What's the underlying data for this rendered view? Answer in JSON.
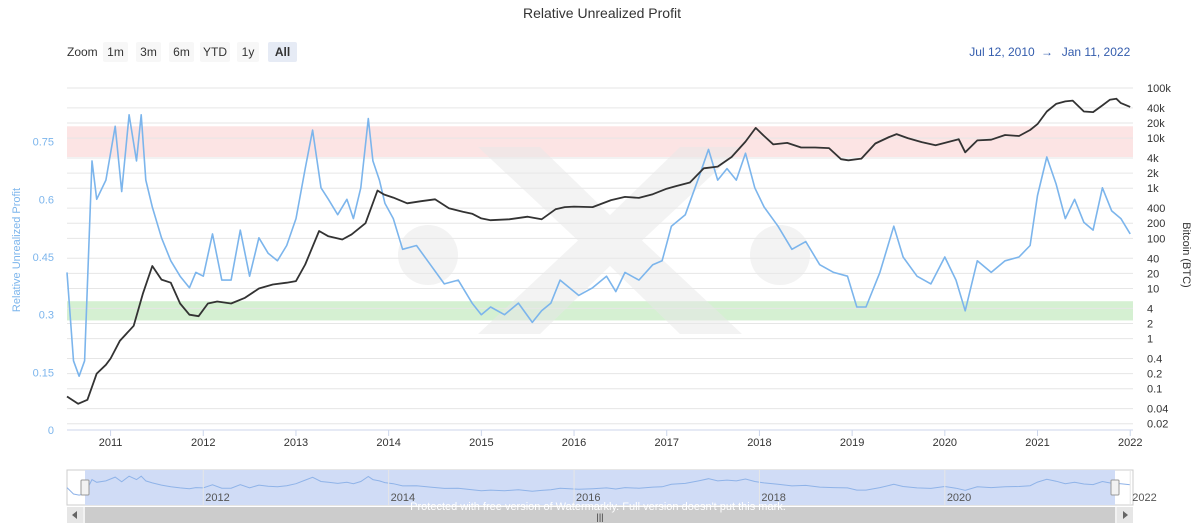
{
  "title": "Relative Unrealized Profit",
  "range_selector": {
    "zoom_label": "Zoom",
    "buttons": [
      {
        "label": "1m",
        "active": false
      },
      {
        "label": "3m",
        "active": false
      },
      {
        "label": "6m",
        "active": false
      },
      {
        "label": "YTD",
        "active": false
      },
      {
        "label": "1y",
        "active": false
      },
      {
        "label": "All",
        "active": true
      }
    ],
    "from_date": "Jul 12, 2010",
    "arrow": "→",
    "to_date": "Jan 11, 2022"
  },
  "watermark_text": "Protected with free version of Watermarkly. Full version doesn't put this mark.",
  "chart_data": {
    "type": "line",
    "title": "Relative Unrealized Profit",
    "x_range": [
      2010.53,
      2022.03
    ],
    "x_ticks": [
      "2011",
      "2012",
      "2013",
      "2014",
      "2015",
      "2016",
      "2017",
      "2018",
      "2019",
      "2020",
      "2021",
      "2022"
    ],
    "left_axis": {
      "title": "Relative Unrealized Profit",
      "range": [
        0,
        0.9
      ],
      "ticks": [
        "0",
        "0.15",
        "0.3",
        "0.45",
        "0.6",
        "0.75"
      ],
      "color": "#7cb5ec"
    },
    "right_axis": {
      "title": "Bitcoin (BTC)",
      "scale": "log",
      "range": [
        0.015,
        120000
      ],
      "ticks": [
        "0.02",
        "0.04",
        "0.1",
        "0.2",
        "0.4",
        "1",
        "2",
        "4",
        "10",
        "20",
        "40",
        "100",
        "200",
        "400",
        "1k",
        "2k",
        "4k",
        "10k",
        "20k",
        "40k",
        "100k"
      ],
      "tick_values": [
        0.02,
        0.04,
        0.1,
        0.2,
        0.4,
        1,
        2,
        4,
        10,
        20,
        40,
        100,
        200,
        400,
        1000,
        2000,
        4000,
        10000,
        20000,
        40000,
        100000
      ],
      "color": "#333333"
    },
    "bands": [
      {
        "from": 0.71,
        "to": 0.79,
        "color": "#fce4e4"
      },
      {
        "from": 0.285,
        "to": 0.335,
        "color": "#d5f0d2"
      }
    ],
    "grid": true,
    "series": [
      {
        "axis": "left",
        "color": "#7cb5ec",
        "x": [
          2010.53,
          2010.6,
          2010.66,
          2010.72,
          2010.8,
          2010.85,
          2010.95,
          2011.05,
          2011.12,
          2011.2,
          2011.28,
          2011.33,
          2011.38,
          2011.45,
          2011.55,
          2011.65,
          2011.75,
          2011.85,
          2011.92,
          2012.0,
          2012.1,
          2012.2,
          2012.3,
          2012.4,
          2012.5,
          2012.6,
          2012.7,
          2012.8,
          2012.9,
          2013.0,
          2013.1,
          2013.18,
          2013.27,
          2013.35,
          2013.45,
          2013.55,
          2013.62,
          2013.7,
          2013.78,
          2013.83,
          2013.9,
          2013.96,
          2014.05,
          2014.15,
          2014.3,
          2014.45,
          2014.6,
          2014.75,
          2014.9,
          2015.0,
          2015.1,
          2015.25,
          2015.4,
          2015.55,
          2015.65,
          2015.75,
          2015.85,
          2015.95,
          2016.05,
          2016.2,
          2016.35,
          2016.45,
          2016.55,
          2016.7,
          2016.85,
          2016.95,
          2017.05,
          2017.2,
          2017.35,
          2017.45,
          2017.55,
          2017.65,
          2017.75,
          2017.85,
          2017.95,
          2018.05,
          2018.2,
          2018.35,
          2018.5,
          2018.65,
          2018.8,
          2018.95,
          2019.05,
          2019.15,
          2019.3,
          2019.45,
          2019.55,
          2019.7,
          2019.85,
          2020.0,
          2020.12,
          2020.22,
          2020.35,
          2020.5,
          2020.65,
          2020.8,
          2020.92,
          2021.0,
          2021.1,
          2021.2,
          2021.3,
          2021.4,
          2021.5,
          2021.6,
          2021.7,
          2021.8,
          2021.9,
          2022.0
        ],
        "y": [
          0.41,
          0.18,
          0.14,
          0.18,
          0.7,
          0.6,
          0.65,
          0.79,
          0.62,
          0.82,
          0.7,
          0.82,
          0.65,
          0.58,
          0.5,
          0.44,
          0.4,
          0.37,
          0.41,
          0.4,
          0.51,
          0.39,
          0.39,
          0.52,
          0.4,
          0.5,
          0.46,
          0.44,
          0.48,
          0.55,
          0.68,
          0.78,
          0.63,
          0.6,
          0.56,
          0.6,
          0.55,
          0.63,
          0.81,
          0.7,
          0.65,
          0.59,
          0.55,
          0.47,
          0.48,
          0.43,
          0.38,
          0.39,
          0.33,
          0.3,
          0.32,
          0.3,
          0.33,
          0.28,
          0.31,
          0.33,
          0.39,
          0.37,
          0.35,
          0.37,
          0.4,
          0.36,
          0.41,
          0.39,
          0.43,
          0.44,
          0.53,
          0.56,
          0.66,
          0.73,
          0.65,
          0.68,
          0.65,
          0.72,
          0.63,
          0.58,
          0.53,
          0.47,
          0.49,
          0.43,
          0.41,
          0.4,
          0.32,
          0.32,
          0.41,
          0.53,
          0.45,
          0.4,
          0.38,
          0.45,
          0.39,
          0.31,
          0.44,
          0.41,
          0.44,
          0.45,
          0.48,
          0.61,
          0.71,
          0.64,
          0.55,
          0.6,
          0.54,
          0.52,
          0.63,
          0.57,
          0.55,
          0.51
        ]
      },
      {
        "axis": "right",
        "color": "#333333",
        "x": [
          2010.53,
          2010.65,
          2010.75,
          2010.85,
          2010.95,
          2011.0,
          2011.1,
          2011.25,
          2011.35,
          2011.45,
          2011.55,
          2011.65,
          2011.75,
          2011.85,
          2011.95,
          2012.05,
          2012.15,
          2012.3,
          2012.45,
          2012.6,
          2012.75,
          2012.9,
          2013.0,
          2013.1,
          2013.25,
          2013.35,
          2013.5,
          2013.6,
          2013.75,
          2013.88,
          2013.95,
          2014.05,
          2014.2,
          2014.35,
          2014.5,
          2014.65,
          2014.8,
          2014.9,
          2015.0,
          2015.1,
          2015.3,
          2015.5,
          2015.65,
          2015.8,
          2015.9,
          2016.0,
          2016.2,
          2016.4,
          2016.55,
          2016.7,
          2016.85,
          2017.0,
          2017.1,
          2017.25,
          2017.4,
          2017.55,
          2017.7,
          2017.85,
          2017.96,
          2018.05,
          2018.15,
          2018.3,
          2018.45,
          2018.6,
          2018.75,
          2018.88,
          2018.96,
          2019.1,
          2019.25,
          2019.4,
          2019.48,
          2019.6,
          2019.75,
          2019.9,
          2020.0,
          2020.15,
          2020.22,
          2020.35,
          2020.5,
          2020.65,
          2020.8,
          2020.92,
          2021.0,
          2021.1,
          2021.2,
          2021.3,
          2021.38,
          2021.5,
          2021.6,
          2021.7,
          2021.78,
          2021.85,
          2021.9,
          2022.0
        ],
        "y": [
          0.07,
          0.05,
          0.06,
          0.2,
          0.3,
          0.4,
          0.9,
          1.8,
          8,
          28,
          15,
          13,
          5,
          3,
          2.8,
          5,
          5.5,
          5,
          6.5,
          10,
          12,
          13,
          14,
          30,
          140,
          110,
          95,
          120,
          200,
          900,
          750,
          650,
          500,
          550,
          600,
          400,
          340,
          310,
          250,
          230,
          240,
          270,
          240,
          380,
          420,
          430,
          420,
          580,
          670,
          640,
          760,
          980,
          1100,
          1300,
          2500,
          2700,
          4200,
          8500,
          16000,
          11000,
          7500,
          8000,
          6500,
          6500,
          6300,
          3800,
          3600,
          3900,
          7800,
          10500,
          12000,
          10000,
          8300,
          7200,
          8000,
          9500,
          5200,
          9000,
          9300,
          11500,
          11000,
          14500,
          19000,
          34000,
          48000,
          54000,
          56000,
          34000,
          33000,
          45000,
          58000,
          61000,
          50000,
          42000
        ]
      }
    ]
  },
  "navigator": {
    "x_labels": [
      "2012",
      "2014",
      "2016",
      "2018",
      "2020",
      "2022"
    ],
    "x_values": [
      2012,
      2014,
      2016,
      2018,
      2020,
      2022
    ]
  }
}
